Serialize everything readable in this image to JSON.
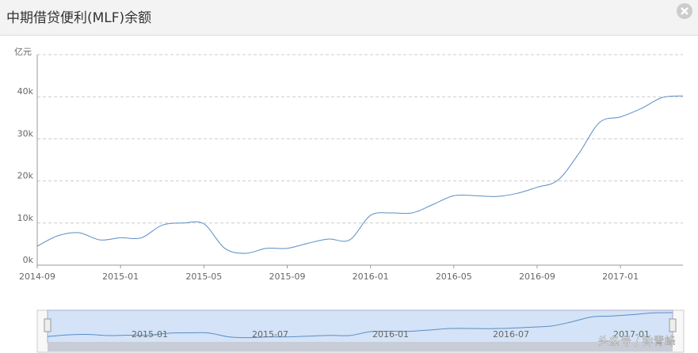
{
  "header": {
    "title": "中期借贷便利(MLF)余额"
  },
  "chart_data": {
    "type": "line",
    "y_unit_label": "亿元",
    "categories": [
      "2014-09",
      null,
      null,
      null,
      "2015-01",
      null,
      null,
      null,
      "2015-05",
      null,
      null,
      null,
      "2015-09",
      null,
      null,
      null,
      "2016-01",
      null,
      null,
      null,
      "2016-05",
      null,
      null,
      null,
      "2016-09",
      null,
      null,
      null,
      "2017-01",
      null,
      null,
      null
    ],
    "series": [
      {
        "name": "MLF",
        "color": "#5b8ec4",
        "values": [
          4500,
          7000,
          7700,
          6000,
          6500,
          6500,
          9500,
          10000,
          9800,
          4000,
          2800,
          4000,
          4000,
          5200,
          6200,
          6000,
          11800,
          12400,
          12400,
          14400,
          16500,
          16500,
          16300,
          17000,
          18500,
          20200,
          26500,
          33900,
          35200,
          37200,
          39800,
          40200
        ]
      }
    ],
    "ylim": [
      0,
      50000
    ],
    "yticks": [
      {
        "value": 0,
        "label": "0k"
      },
      {
        "value": 10000,
        "label": "10k"
      },
      {
        "value": 20000,
        "label": "20k"
      },
      {
        "value": 30000,
        "label": "30k"
      },
      {
        "value": 40000,
        "label": "40k"
      }
    ],
    "grid": true,
    "zoom_labels": [
      "2015-01",
      "2015-07",
      "2016-01",
      "2016-07",
      "2017-01"
    ]
  },
  "watermark": "头条号 / 钟青峰"
}
